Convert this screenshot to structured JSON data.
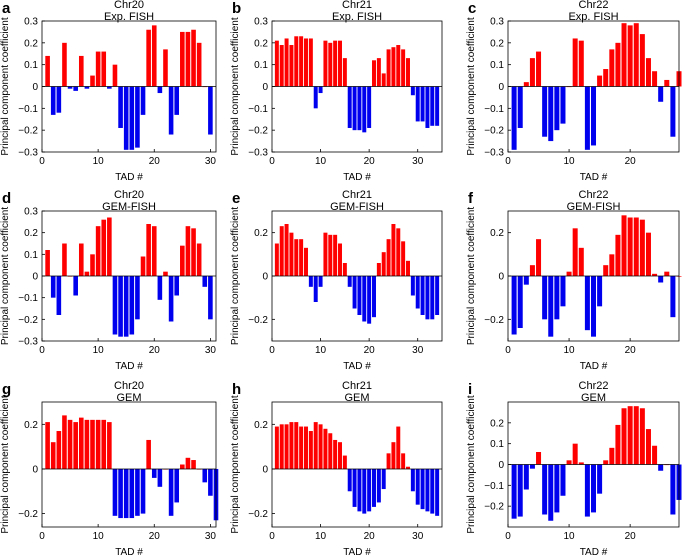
{
  "figure": {
    "colors": {
      "positive": "#ff0000",
      "negative": "#0000ee",
      "axis": "#000000"
    }
  },
  "chart_data": [
    {
      "panel": "a",
      "type": "bar",
      "title": "Chr20",
      "subtitle": "Exp. FISH",
      "xlabel": "TAD #",
      "ylabel": "Principal component coefficient",
      "xlim": [
        0,
        31
      ],
      "ylim": [
        -0.3,
        0.3
      ],
      "xticks": [
        0,
        10,
        20,
        30
      ],
      "yticks": [
        -0.3,
        -0.2,
        -0.1,
        0,
        0.1,
        0.2,
        0.3
      ],
      "ytick_labels": [
        "−0.3",
        "−0.2",
        "−0.1",
        "0",
        "0.1",
        "0.2",
        "0.3"
      ],
      "grid": false,
      "values": [
        0.14,
        -0.13,
        -0.12,
        0.2,
        -0.01,
        -0.02,
        0.14,
        -0.01,
        0.05,
        0.16,
        0.16,
        -0.01,
        0.1,
        -0.19,
        -0.29,
        -0.29,
        -0.28,
        -0.13,
        0.26,
        0.28,
        -0.03,
        0.17,
        -0.22,
        -0.13,
        0.25,
        0.25,
        0.26,
        0.2,
        0.0,
        -0.22
      ]
    },
    {
      "panel": "b",
      "type": "bar",
      "title": "Chr21",
      "subtitle": "Exp. FISH",
      "xlabel": "TAD #",
      "ylabel": "Principal component coefficient",
      "xlim": [
        0,
        35
      ],
      "ylim": [
        -0.3,
        0.3
      ],
      "xticks": [
        0,
        10,
        20,
        30
      ],
      "yticks": [
        -0.3,
        -0.2,
        -0.1,
        0,
        0.1,
        0.2,
        0.3
      ],
      "ytick_labels": [
        "−0.3",
        "−0.2",
        "−0.1",
        "0",
        "0.1",
        "0.2",
        "0.3"
      ],
      "grid": false,
      "values": [
        0.21,
        0.19,
        0.22,
        0.19,
        0.23,
        0.23,
        0.22,
        0.22,
        -0.1,
        -0.03,
        0.21,
        0.2,
        0.21,
        0.21,
        0.13,
        -0.19,
        -0.2,
        -0.2,
        -0.21,
        -0.19,
        0.12,
        0.13,
        0.06,
        0.17,
        0.18,
        0.19,
        0.17,
        0.13,
        -0.04,
        -0.16,
        -0.16,
        -0.19,
        -0.18,
        -0.18
      ]
    },
    {
      "panel": "c",
      "type": "bar",
      "title": "Chr22",
      "subtitle": "Exp. FISH",
      "xlabel": "TAD #",
      "ylabel": "Principal component coefficient",
      "xlim": [
        0,
        28
      ],
      "ylim": [
        -0.3,
        0.3
      ],
      "xticks": [
        0,
        10,
        20
      ],
      "yticks": [
        -0.3,
        -0.2,
        -0.1,
        0,
        0.1,
        0.2,
        0.3
      ],
      "ytick_labels": [
        "−0.3",
        "−0.2",
        "−0.1",
        "0",
        "0.1",
        "0.2",
        "0.3"
      ],
      "grid": false,
      "values": [
        -0.29,
        -0.19,
        0.02,
        0.13,
        0.16,
        -0.23,
        -0.25,
        -0.2,
        -0.17,
        0.0,
        0.22,
        0.21,
        -0.29,
        -0.27,
        0.05,
        0.08,
        0.17,
        0.2,
        0.29,
        0.28,
        0.29,
        0.24,
        0.13,
        0.07,
        -0.07,
        0.03,
        -0.23,
        0.07
      ]
    },
    {
      "panel": "d",
      "type": "bar",
      "title": "Chr20",
      "subtitle": "GEM-FISH",
      "xlabel": "TAD #",
      "ylabel": "Principal component coefficient",
      "xlim": [
        0,
        31
      ],
      "ylim": [
        -0.3,
        0.3
      ],
      "xticks": [
        0,
        10,
        20,
        30
      ],
      "yticks": [
        -0.3,
        -0.2,
        -0.1,
        0,
        0.1,
        0.2,
        0.3
      ],
      "ytick_labels": [
        "−0.3",
        "−0.2",
        "−0.1",
        "0",
        "0.1",
        "0.2",
        "0.3"
      ],
      "grid": false,
      "values": [
        0.12,
        -0.1,
        -0.18,
        0.15,
        0.0,
        -0.09,
        0.15,
        0.02,
        0.1,
        0.23,
        0.26,
        0.27,
        -0.27,
        -0.28,
        -0.28,
        -0.27,
        -0.2,
        0.09,
        0.24,
        0.23,
        -0.11,
        0.02,
        -0.21,
        -0.09,
        0.14,
        0.23,
        0.22,
        0.15,
        -0.05,
        -0.2
      ]
    },
    {
      "panel": "e",
      "type": "bar",
      "title": "Chr21",
      "subtitle": "GEM-FISH",
      "xlabel": "TAD #",
      "ylabel": "Principal component coefficient",
      "xlim": [
        0,
        35
      ],
      "ylim": [
        -0.3,
        0.3
      ],
      "xticks": [
        0,
        10,
        20,
        30
      ],
      "yticks": [
        -0.2,
        0,
        0.2
      ],
      "ytick_labels": [
        "−0.2",
        "0",
        "0.2"
      ],
      "grid": false,
      "values": [
        0.15,
        0.23,
        0.24,
        0.2,
        0.17,
        0.17,
        0.13,
        -0.05,
        -0.12,
        -0.05,
        0.2,
        0.19,
        0.19,
        0.15,
        0.06,
        -0.05,
        -0.15,
        -0.18,
        -0.21,
        -0.22,
        -0.19,
        0.06,
        0.11,
        0.17,
        0.24,
        0.22,
        0.16,
        0.07,
        -0.09,
        -0.15,
        -0.18,
        -0.2,
        -0.2,
        -0.18
      ]
    },
    {
      "panel": "f",
      "type": "bar",
      "title": "Chr22",
      "subtitle": "GEM-FISH",
      "xlabel": "TAD #",
      "ylabel": "Principal component coefficient",
      "xlim": [
        0,
        28
      ],
      "ylim": [
        -0.3,
        0.3
      ],
      "xticks": [
        0,
        10,
        20
      ],
      "yticks": [
        -0.2,
        0,
        0.2
      ],
      "ytick_labels": [
        "−0.2",
        "0",
        "0.2"
      ],
      "grid": false,
      "values": [
        -0.27,
        -0.24,
        -0.04,
        0.05,
        0.17,
        -0.2,
        -0.28,
        -0.2,
        -0.14,
        0.02,
        0.22,
        0.13,
        -0.25,
        -0.28,
        -0.14,
        0.05,
        0.1,
        0.19,
        0.28,
        0.27,
        0.27,
        0.26,
        0.2,
        0.01,
        -0.03,
        0.02,
        -0.19,
        0.0
      ]
    },
    {
      "panel": "g",
      "type": "bar",
      "title": "Chr20",
      "subtitle": "GEM",
      "xlabel": "TAD #",
      "ylabel": "Principal component coefficient",
      "xlim": [
        0,
        31
      ],
      "ylim": [
        -0.26,
        0.3
      ],
      "xticks": [
        0,
        10,
        20,
        30
      ],
      "yticks": [
        -0.2,
        0,
        0.2
      ],
      "ytick_labels": [
        "−0.2",
        "0",
        "0.2"
      ],
      "grid": false,
      "values": [
        0.21,
        0.12,
        0.17,
        0.24,
        0.22,
        0.21,
        0.23,
        0.22,
        0.22,
        0.22,
        0.22,
        0.21,
        -0.21,
        -0.22,
        -0.22,
        -0.22,
        -0.21,
        -0.2,
        0.13,
        -0.04,
        -0.08,
        0.0,
        -0.21,
        -0.15,
        0.02,
        0.05,
        0.04,
        0.0,
        -0.06,
        -0.12,
        -0.23
      ]
    },
    {
      "panel": "h",
      "type": "bar",
      "title": "Chr21",
      "subtitle": "GEM",
      "xlabel": "TAD #",
      "ylabel": "Principal component coefficient",
      "xlim": [
        0,
        35
      ],
      "ylim": [
        -0.26,
        0.3
      ],
      "xticks": [
        0,
        10,
        20,
        30
      ],
      "yticks": [
        -0.2,
        0,
        0.2
      ],
      "ytick_labels": [
        "−0.2",
        "0",
        "0.2"
      ],
      "grid": false,
      "values": [
        0.19,
        0.2,
        0.2,
        0.21,
        0.21,
        0.19,
        0.19,
        0.17,
        0.21,
        0.2,
        0.18,
        0.16,
        0.13,
        0.12,
        0.06,
        -0.1,
        -0.17,
        -0.19,
        -0.2,
        -0.19,
        -0.17,
        -0.15,
        -0.09,
        0.07,
        0.12,
        0.19,
        0.07,
        0.01,
        -0.1,
        -0.16,
        -0.18,
        -0.19,
        -0.2,
        -0.21
      ]
    },
    {
      "panel": "i",
      "type": "bar",
      "title": "Chr22",
      "subtitle": "GEM",
      "xlabel": "TAD #",
      "ylabel": "Principal component coefficient",
      "xlim": [
        0,
        28
      ],
      "ylim": [
        -0.3,
        0.3
      ],
      "xticks": [
        0,
        10,
        20
      ],
      "yticks": [
        -0.2,
        -0.1,
        0,
        0.1,
        0.2
      ],
      "ytick_labels": [
        "−0.2",
        "−0.1",
        "0",
        "0.1",
        "0.2"
      ],
      "grid": false,
      "values": [
        -0.26,
        -0.25,
        -0.12,
        -0.02,
        0.06,
        -0.24,
        -0.27,
        -0.23,
        -0.15,
        0.02,
        0.1,
        0.01,
        -0.25,
        -0.23,
        -0.14,
        0.02,
        0.08,
        0.19,
        0.27,
        0.28,
        0.28,
        0.27,
        0.17,
        0.09,
        -0.03,
        0.0,
        -0.24,
        -0.17
      ]
    }
  ]
}
